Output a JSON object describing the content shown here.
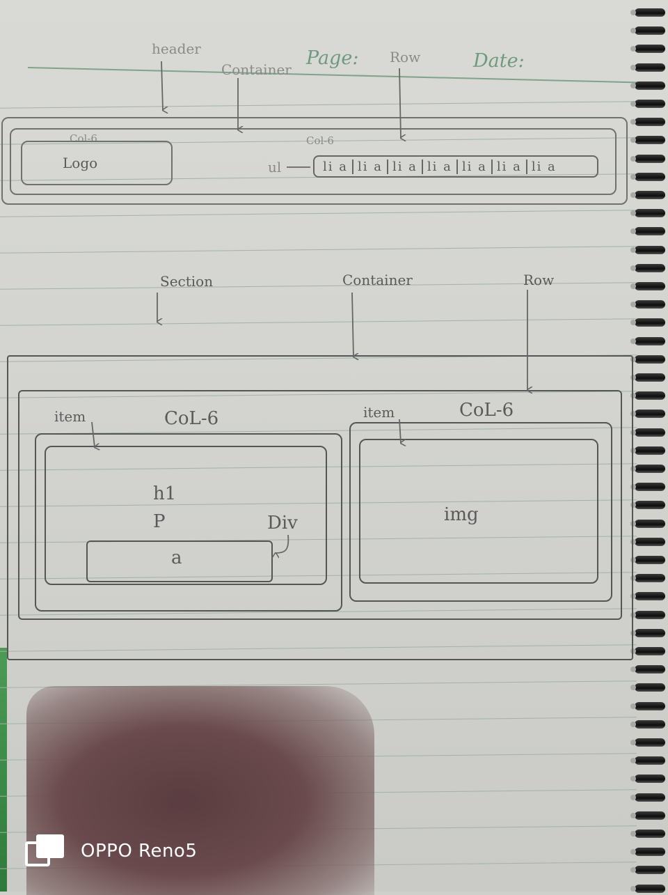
{
  "printed": {
    "page_label": "Page:",
    "date_label": "Date:"
  },
  "header_sketch": {
    "header_label": "header",
    "container_label": "Container",
    "row_label": "Row",
    "col_left_label": "Col-6",
    "logo_label": "Logo",
    "col_right_label": "Col-6",
    "ul_label": "ul",
    "nav_items": [
      "li a",
      "li a",
      "li a",
      "li a",
      "li a",
      "li a",
      "li a"
    ]
  },
  "section_sketch": {
    "section_label": "Section",
    "container_label": "Container",
    "row_label": "Row",
    "left": {
      "item_label": "item",
      "col_label": "CoL-6",
      "h1_label": "h1",
      "p_label": "P",
      "div_label": "Div",
      "a_label": "a"
    },
    "right": {
      "item_label": "item",
      "col_label": "CoL-6",
      "img_label": "img"
    }
  },
  "watermark": {
    "text": "OPPO Reno5"
  },
  "colors": {
    "pencil": "#555555",
    "ruled_line": "#9fb4a6",
    "paper": "#d6d6d2",
    "shadow": "#5a3d40"
  }
}
